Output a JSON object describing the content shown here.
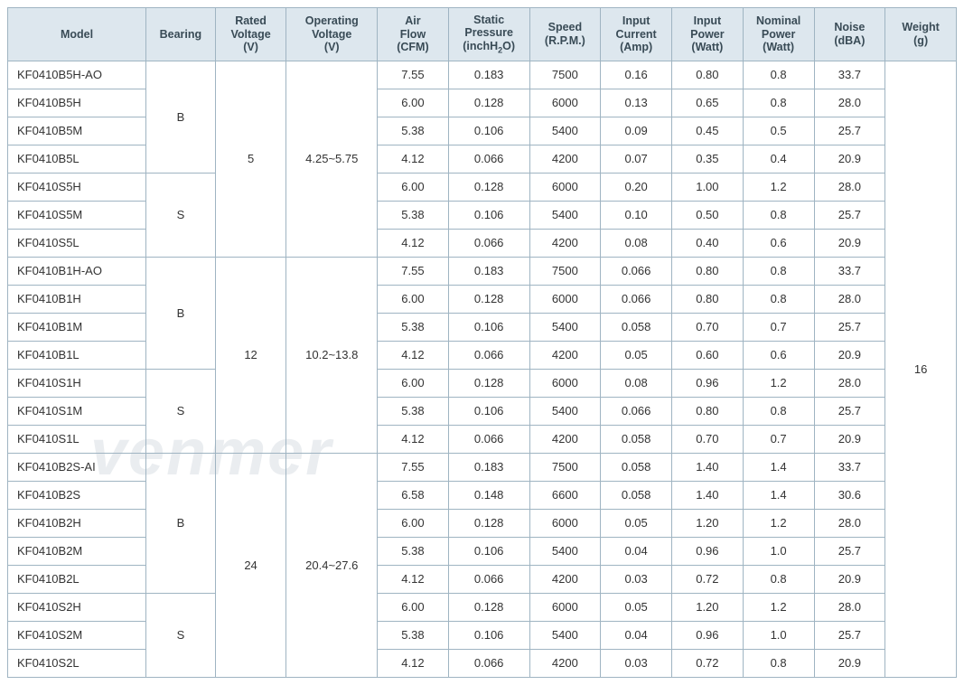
{
  "columns": {
    "model": "Model",
    "bearing": "Bearing",
    "rated": "Rated\nVoltage\n(V)",
    "oper": "Operating\nVoltage\n(V)",
    "air": "Air\nFlow\n(CFM)",
    "static": "Static\nPressure\n(inchH₂O)",
    "speed": "Speed\n(R.P.M.)",
    "inc": "Input\nCurrent\n(Amp)",
    "inp": "Input\nPower\n(Watt)",
    "nom": "Nominal\nPower\n(Watt)",
    "noise": "Noise\n(dBA)",
    "weight": "Weight\n(g)"
  },
  "groups": [
    {
      "rated": "5",
      "oper": "4.25~5.75",
      "bearings": [
        {
          "bearing": "B",
          "rows": [
            {
              "model": "KF0410B5H-AO",
              "air": "7.55",
              "static": "0.183",
              "speed": "7500",
              "inc": "0.16",
              "inp": "0.80",
              "nom": "0.8",
              "noise": "33.7"
            },
            {
              "model": "KF0410B5H",
              "air": "6.00",
              "static": "0.128",
              "speed": "6000",
              "inc": "0.13",
              "inp": "0.65",
              "nom": "0.8",
              "noise": "28.0"
            },
            {
              "model": "KF0410B5M",
              "air": "5.38",
              "static": "0.106",
              "speed": "5400",
              "inc": "0.09",
              "inp": "0.45",
              "nom": "0.5",
              "noise": "25.7"
            },
            {
              "model": "KF0410B5L",
              "air": "4.12",
              "static": "0.066",
              "speed": "4200",
              "inc": "0.07",
              "inp": "0.35",
              "nom": "0.4",
              "noise": "20.9"
            }
          ]
        },
        {
          "bearing": "S",
          "rows": [
            {
              "model": "KF0410S5H",
              "air": "6.00",
              "static": "0.128",
              "speed": "6000",
              "inc": "0.20",
              "inp": "1.00",
              "nom": "1.2",
              "noise": "28.0"
            },
            {
              "model": "KF0410S5M",
              "air": "5.38",
              "static": "0.106",
              "speed": "5400",
              "inc": "0.10",
              "inp": "0.50",
              "nom": "0.8",
              "noise": "25.7"
            },
            {
              "model": "KF0410S5L",
              "air": "4.12",
              "static": "0.066",
              "speed": "4200",
              "inc": "0.08",
              "inp": "0.40",
              "nom": "0.6",
              "noise": "20.9"
            }
          ]
        }
      ]
    },
    {
      "rated": "12",
      "oper": "10.2~13.8",
      "bearings": [
        {
          "bearing": "B",
          "rows": [
            {
              "model": "KF0410B1H-AO",
              "air": "7.55",
              "static": "0.183",
              "speed": "7500",
              "inc": "0.066",
              "inp": "0.80",
              "nom": "0.8",
              "noise": "33.7"
            },
            {
              "model": "KF0410B1H",
              "air": "6.00",
              "static": "0.128",
              "speed": "6000",
              "inc": "0.066",
              "inp": "0.80",
              "nom": "0.8",
              "noise": "28.0"
            },
            {
              "model": "KF0410B1M",
              "air": "5.38",
              "static": "0.106",
              "speed": "5400",
              "inc": "0.058",
              "inp": "0.70",
              "nom": "0.7",
              "noise": "25.7"
            },
            {
              "model": "KF0410B1L",
              "air": "4.12",
              "static": "0.066",
              "speed": "4200",
              "inc": "0.05",
              "inp": "0.60",
              "nom": "0.6",
              "noise": "20.9"
            }
          ]
        },
        {
          "bearing": "S",
          "rows": [
            {
              "model": "KF0410S1H",
              "air": "6.00",
              "static": "0.128",
              "speed": "6000",
              "inc": "0.08",
              "inp": "0.96",
              "nom": "1.2",
              "noise": "28.0"
            },
            {
              "model": "KF0410S1M",
              "air": "5.38",
              "static": "0.106",
              "speed": "5400",
              "inc": "0.066",
              "inp": "0.80",
              "nom": "0.8",
              "noise": "25.7"
            },
            {
              "model": "KF0410S1L",
              "air": "4.12",
              "static": "0.066",
              "speed": "4200",
              "inc": "0.058",
              "inp": "0.70",
              "nom": "0.7",
              "noise": "20.9"
            }
          ]
        }
      ]
    },
    {
      "rated": "24",
      "oper": "20.4~27.6",
      "bearings": [
        {
          "bearing": "B",
          "rows": [
            {
              "model": "KF0410B2S-AI",
              "air": "7.55",
              "static": "0.183",
              "speed": "7500",
              "inc": "0.058",
              "inp": "1.40",
              "nom": "1.4",
              "noise": "33.7"
            },
            {
              "model": "KF0410B2S",
              "air": "6.58",
              "static": "0.148",
              "speed": "6600",
              "inc": "0.058",
              "inp": "1.40",
              "nom": "1.4",
              "noise": "30.6"
            },
            {
              "model": "KF0410B2H",
              "air": "6.00",
              "static": "0.128",
              "speed": "6000",
              "inc": "0.05",
              "inp": "1.20",
              "nom": "1.2",
              "noise": "28.0"
            },
            {
              "model": "KF0410B2M",
              "air": "5.38",
              "static": "0.106",
              "speed": "5400",
              "inc": "0.04",
              "inp": "0.96",
              "nom": "1.0",
              "noise": "25.7"
            },
            {
              "model": "KF0410B2L",
              "air": "4.12",
              "static": "0.066",
              "speed": "4200",
              "inc": "0.03",
              "inp": "0.72",
              "nom": "0.8",
              "noise": "20.9"
            }
          ]
        },
        {
          "bearing": "S",
          "rows": [
            {
              "model": "KF0410S2H",
              "air": "6.00",
              "static": "0.128",
              "speed": "6000",
              "inc": "0.05",
              "inp": "1.20",
              "nom": "1.2",
              "noise": "28.0"
            },
            {
              "model": "KF0410S2M",
              "air": "5.38",
              "static": "0.106",
              "speed": "5400",
              "inc": "0.04",
              "inp": "0.96",
              "nom": "1.0",
              "noise": "25.7"
            },
            {
              "model": "KF0410S2L",
              "air": "4.12",
              "static": "0.066",
              "speed": "4200",
              "inc": "0.03",
              "inp": "0.72",
              "nom": "0.8",
              "noise": "20.9"
            }
          ]
        }
      ]
    }
  ],
  "weight": "16",
  "colors": {
    "header_bg": "#dde7ee",
    "border": "#9fb4c2",
    "text": "#394b56"
  }
}
